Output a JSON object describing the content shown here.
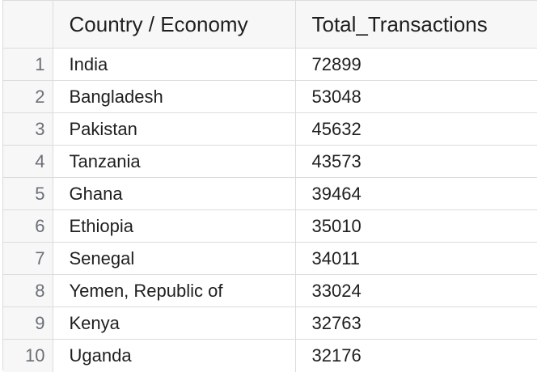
{
  "table": {
    "columns": [
      "Country / Economy",
      "Total_Transactions"
    ],
    "rows": [
      {
        "index": "1",
        "country": "India",
        "total": "72899"
      },
      {
        "index": "2",
        "country": "Bangladesh",
        "total": "53048"
      },
      {
        "index": "3",
        "country": "Pakistan",
        "total": "45632"
      },
      {
        "index": "4",
        "country": "Tanzania",
        "total": "43573"
      },
      {
        "index": "5",
        "country": "Ghana",
        "total": "39464"
      },
      {
        "index": "6",
        "country": "Ethiopia",
        "total": "35010"
      },
      {
        "index": "7",
        "country": "Senegal",
        "total": "34011"
      },
      {
        "index": "8",
        "country": "Yemen, Republic of",
        "total": "33024"
      },
      {
        "index": "9",
        "country": "Kenya",
        "total": "32763"
      },
      {
        "index": "10",
        "country": "Uganda",
        "total": "32176"
      }
    ]
  }
}
